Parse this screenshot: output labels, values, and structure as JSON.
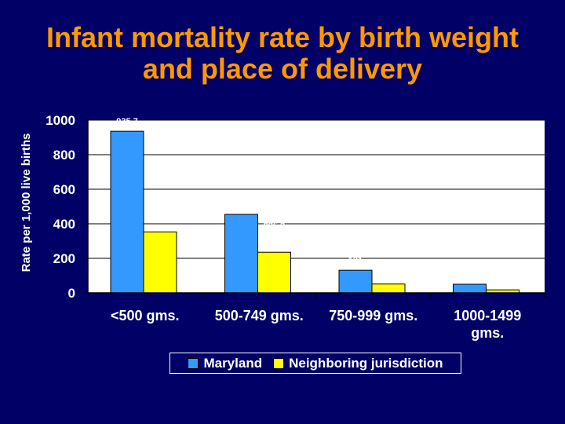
{
  "title_line1": "Infant mortality rate by birth weight",
  "title_line2": "and place of delivery",
  "chart_data": {
    "type": "bar",
    "categories": [
      "<500 gms.",
      "500-749 gms.",
      "750-999 gms.",
      "1000-1499 gms."
    ],
    "category_lines": [
      [
        "<500 gms."
      ],
      [
        "500-749 gms."
      ],
      [
        "750-999 gms."
      ],
      [
        "1000-1499",
        "gms."
      ]
    ],
    "series": [
      {
        "name": "Maryland",
        "values": [
          935.7,
          454.5,
          131,
          50
        ],
        "labels": [
          "935.7",
          "454.5",
          "131",
          "50"
        ],
        "color": "#3399ff"
      },
      {
        "name": "Neighboring jurisdiction",
        "values": [
          352.9,
          235.3,
          51.3,
          17.5
        ],
        "labels": [
          "352.9",
          "235.3",
          "51.3",
          "17.5"
        ],
        "color": "#ffff00"
      }
    ],
    "ylabel": "Rate per 1,000 live births",
    "xlabel": "",
    "ylim": [
      0,
      1000
    ],
    "yticks": [
      0,
      200,
      400,
      600,
      800,
      1000
    ],
    "grid": true,
    "legend_position": "bottom"
  }
}
